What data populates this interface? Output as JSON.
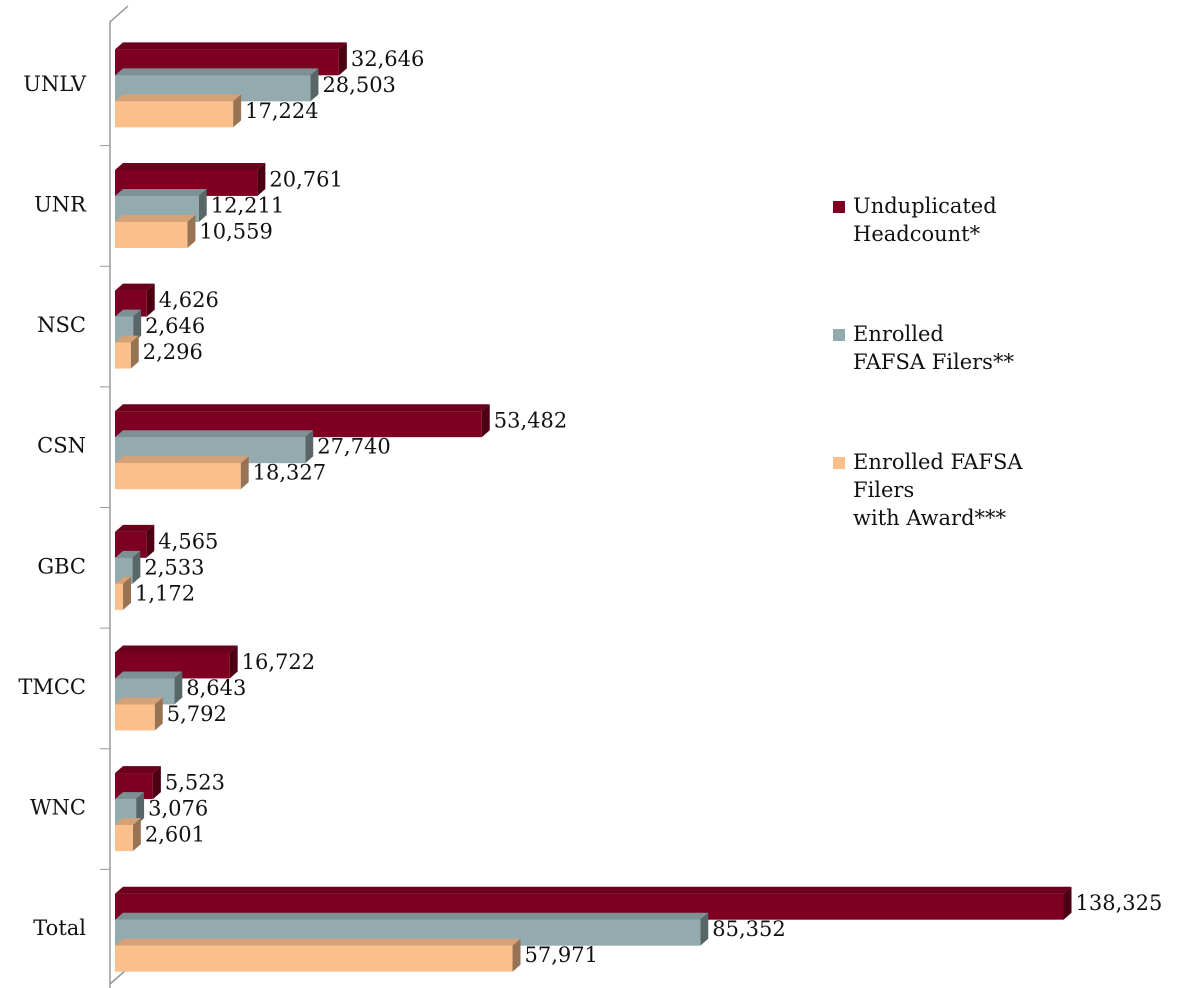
{
  "chart_data": {
    "type": "bar",
    "orientation": "horizontal",
    "categories": [
      "UNLV",
      "UNR",
      "NSC",
      "CSN",
      "GBC",
      "TMCC",
      "WNC",
      "Total"
    ],
    "series": [
      {
        "name": "Unduplicated\nHeadcount*",
        "color": "#7d0022",
        "values": [
          32646,
          20761,
          4626,
          53482,
          4565,
          16722,
          5523,
          138325
        ],
        "value_labels": [
          "32,646",
          "20,761",
          "4,626",
          "53,482",
          "4,565",
          "16,722",
          "5,523",
          "138,325"
        ]
      },
      {
        "name": "Enrolled\nFAFSA Filers**",
        "color": "#93aaae",
        "values": [
          28503,
          12211,
          2646,
          27740,
          2533,
          8643,
          3076,
          85352
        ],
        "value_labels": [
          "28,503",
          "12,211",
          "2,646",
          "27,740",
          "2,533",
          "8,643",
          "3,076",
          "85,352"
        ]
      },
      {
        "name": "Enrolled FAFSA\nFilers\nwith Award***",
        "color": "#fbbf8c",
        "values": [
          17224,
          10559,
          2296,
          18327,
          1172,
          5792,
          2601,
          57971
        ],
        "value_labels": [
          "17,224",
          "10,559",
          "2,296",
          "18,327",
          "1,172",
          "5,792",
          "2,601",
          "57,971"
        ]
      }
    ],
    "xlim": [
      0,
      140000
    ],
    "legend": "right"
  }
}
